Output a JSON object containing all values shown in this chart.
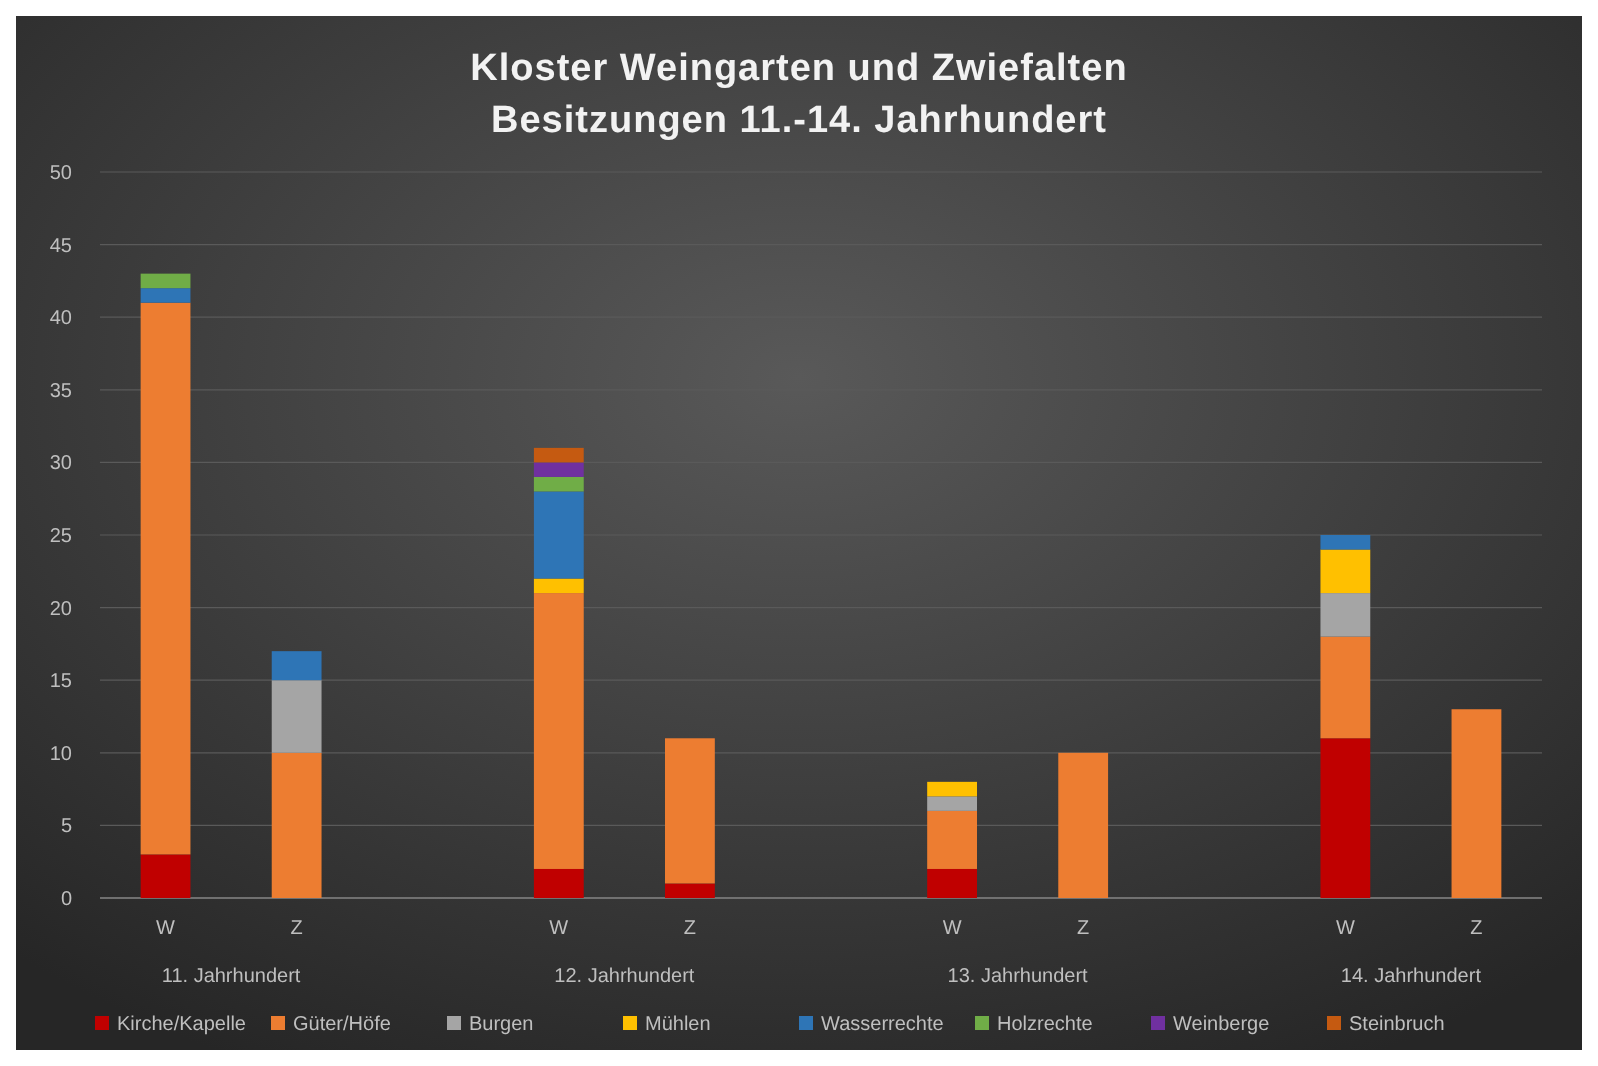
{
  "chart_data": {
    "type": "bar",
    "stacked": true,
    "title": "Kloster Weingarten und Zwiefalten\nBesitzungen 11.-14. Jahrhundert",
    "categories": [
      "W",
      "Z",
      "W",
      "Z",
      "W",
      "Z",
      "W",
      "Z"
    ],
    "annotations": [
      "11. Jahrhundert",
      "12. Jahrhundert",
      "13. Jahrhundert",
      "14. Jahrhundert"
    ],
    "series": [
      {
        "name": "Kirche/Kapelle",
        "color": "#c00000",
        "values": [
          3,
          0,
          2,
          1,
          2,
          0,
          11,
          0
        ]
      },
      {
        "name": "Güter/Höfe",
        "color": "#ed7d31",
        "values": [
          38,
          10,
          19,
          10,
          4,
          10,
          7,
          13
        ]
      },
      {
        "name": "Burgen",
        "color": "#a5a5a5",
        "values": [
          0,
          5,
          0,
          0,
          1,
          0,
          3,
          0
        ]
      },
      {
        "name": "Mühlen",
        "color": "#ffc000",
        "values": [
          0,
          0,
          1,
          0,
          1,
          0,
          3,
          0
        ]
      },
      {
        "name": "Wasserrechte",
        "color": "#2e75b6",
        "values": [
          1,
          2,
          6,
          0,
          0,
          0,
          1,
          0
        ]
      },
      {
        "name": "Holzrechte",
        "color": "#70ad47",
        "values": [
          1,
          0,
          1,
          0,
          0,
          0,
          0,
          0
        ]
      },
      {
        "name": "Weinberge",
        "color": "#7030a0",
        "values": [
          0,
          0,
          1,
          0,
          0,
          0,
          0,
          0
        ]
      },
      {
        "name": "Steinbruch",
        "color": "#c55a11",
        "values": [
          0,
          0,
          1,
          0,
          0,
          0,
          0,
          0
        ]
      }
    ],
    "ylim": [
      0,
      50
    ],
    "yticks": [
      0,
      5,
      10,
      15,
      20,
      25,
      30,
      35,
      40,
      45,
      50
    ],
    "grid": "y",
    "legend": "bottom"
  }
}
